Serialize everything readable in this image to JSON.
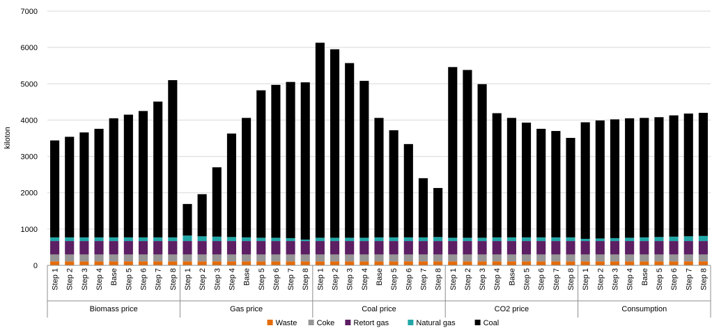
{
  "chart_data": {
    "type": "bar",
    "stacked": true,
    "ylabel": "kiloton",
    "ylim": [
      0,
      7000
    ],
    "yticks": [
      0,
      1000,
      2000,
      3000,
      4000,
      5000,
      6000,
      7000
    ],
    "grid": true,
    "legend_position": "bottom",
    "groups": [
      {
        "name": "Biomass price",
        "categories": [
          "Step 1",
          "Step 2",
          "Step 3",
          "Step 4",
          "Base",
          "Step 5",
          "Step 6",
          "Step 7",
          "Step 8"
        ]
      },
      {
        "name": "Gas price",
        "categories": [
          "Step 1",
          "Step 2",
          "Step 3",
          "Step 4",
          "Base",
          "Step 5",
          "Step 6",
          "Step 7",
          "Step 8"
        ]
      },
      {
        "name": "Coal price",
        "categories": [
          "Step 1",
          "Step 2",
          "Step 3",
          "Step 4",
          "Base",
          "Step 5",
          "Step 6",
          "Step 7",
          "Step 8"
        ]
      },
      {
        "name": "CO2 price",
        "categories": [
          "Step 1",
          "Step 2",
          "Step 3",
          "Step 4",
          "Base",
          "Step 5",
          "Step 6",
          "Step 7",
          "Step 8"
        ]
      },
      {
        "name": "Consumption",
        "categories": [
          "Step 1",
          "Step 2",
          "Step 3",
          "Step 4",
          "Base",
          "Step 5",
          "Step 6",
          "Step 7",
          "Step 8"
        ]
      }
    ],
    "series": [
      {
        "name": "Waste",
        "color": "#e46c0a",
        "values": [
          110,
          110,
          110,
          110,
          110,
          110,
          110,
          110,
          110,
          110,
          110,
          110,
          110,
          110,
          110,
          110,
          110,
          110,
          110,
          110,
          110,
          110,
          110,
          110,
          110,
          110,
          110,
          110,
          110,
          110,
          110,
          110,
          110,
          110,
          110,
          110,
          110,
          110,
          110,
          110,
          110,
          110,
          110,
          110,
          110
        ]
      },
      {
        "name": "Coke",
        "color": "#969696",
        "values": [
          190,
          190,
          190,
          190,
          190,
          190,
          190,
          190,
          190,
          190,
          190,
          190,
          190,
          190,
          190,
          190,
          190,
          190,
          190,
          190,
          190,
          190,
          190,
          190,
          190,
          190,
          190,
          190,
          190,
          190,
          190,
          190,
          190,
          190,
          190,
          190,
          190,
          190,
          190,
          190,
          190,
          190,
          190,
          190,
          190
        ]
      },
      {
        "name": "Retort gas",
        "color": "#5c1f63",
        "values": [
          370,
          370,
          370,
          370,
          370,
          370,
          370,
          370,
          370,
          370,
          370,
          370,
          370,
          370,
          370,
          370,
          370,
          370,
          370,
          370,
          370,
          370,
          370,
          370,
          370,
          370,
          370,
          370,
          370,
          370,
          370,
          370,
          370,
          370,
          370,
          370,
          370,
          370,
          370,
          370,
          370,
          370,
          370,
          370,
          370
        ]
      },
      {
        "name": "Natural gas",
        "color": "#21a7a7",
        "values": [
          100,
          100,
          100,
          100,
          100,
          100,
          100,
          100,
          100,
          150,
          130,
          120,
          110,
          100,
          90,
          90,
          80,
          40,
          90,
          90,
          90,
          90,
          100,
          100,
          100,
          100,
          110,
          90,
          90,
          90,
          100,
          100,
          100,
          100,
          100,
          100,
          60,
          70,
          80,
          90,
          100,
          110,
          120,
          130,
          140
        ]
      },
      {
        "name": "Coal",
        "color": "#000000",
        "values": [
          2670,
          2770,
          2890,
          2990,
          3280,
          3380,
          3480,
          3740,
          4330,
          870,
          1160,
          1910,
          2850,
          3290,
          4060,
          4210,
          4300,
          4330,
          5370,
          5190,
          4810,
          4320,
          3290,
          2950,
          2570,
          1630,
          1350,
          4700,
          4620,
          4230,
          3420,
          3290,
          3160,
          2990,
          2930,
          2740,
          3210,
          3250,
          3270,
          3290,
          3290,
          3300,
          3340,
          3380,
          3390
        ]
      }
    ]
  }
}
